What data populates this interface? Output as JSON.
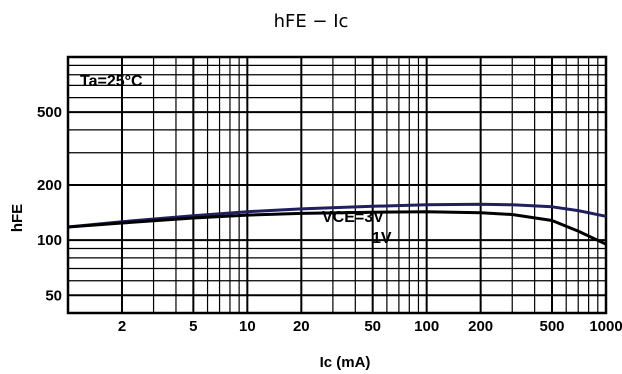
{
  "chart_data": {
    "type": "line",
    "title": "hFE − Ic",
    "xlabel": "Ic (mA)",
    "ylabel": "hFE",
    "xscale": "log",
    "yscale": "log",
    "xlim": [
      1,
      1000
    ],
    "ylim": [
      40,
      1000
    ],
    "x_ticks": [
      2,
      5,
      10,
      20,
      50,
      100,
      200,
      500,
      1000
    ],
    "x_tick_labels": [
      "2",
      "5",
      "10",
      "20",
      "50",
      "100",
      "200",
      "500",
      "1000"
    ],
    "y_ticks": [
      50,
      100,
      200,
      500
    ],
    "y_tick_labels": [
      "50",
      "100",
      "200",
      "500"
    ],
    "grid": true,
    "annotations": [
      "Ta=25°C",
      "VCE=3V",
      "1V"
    ],
    "series": [
      {
        "name": "VCE=3V",
        "x": [
          1,
          2,
          5,
          10,
          20,
          50,
          100,
          200,
          300,
          500,
          700,
          1000
        ],
        "y": [
          118,
          126,
          136,
          143,
          148,
          153,
          156,
          157,
          156,
          152,
          145,
          135
        ]
      },
      {
        "name": "VCE=1V",
        "x": [
          1,
          2,
          5,
          10,
          20,
          50,
          100,
          200,
          300,
          500,
          700,
          1000
        ],
        "y": [
          118,
          124,
          132,
          137,
          140,
          142,
          143,
          141,
          138,
          128,
          112,
          95
        ]
      }
    ]
  }
}
